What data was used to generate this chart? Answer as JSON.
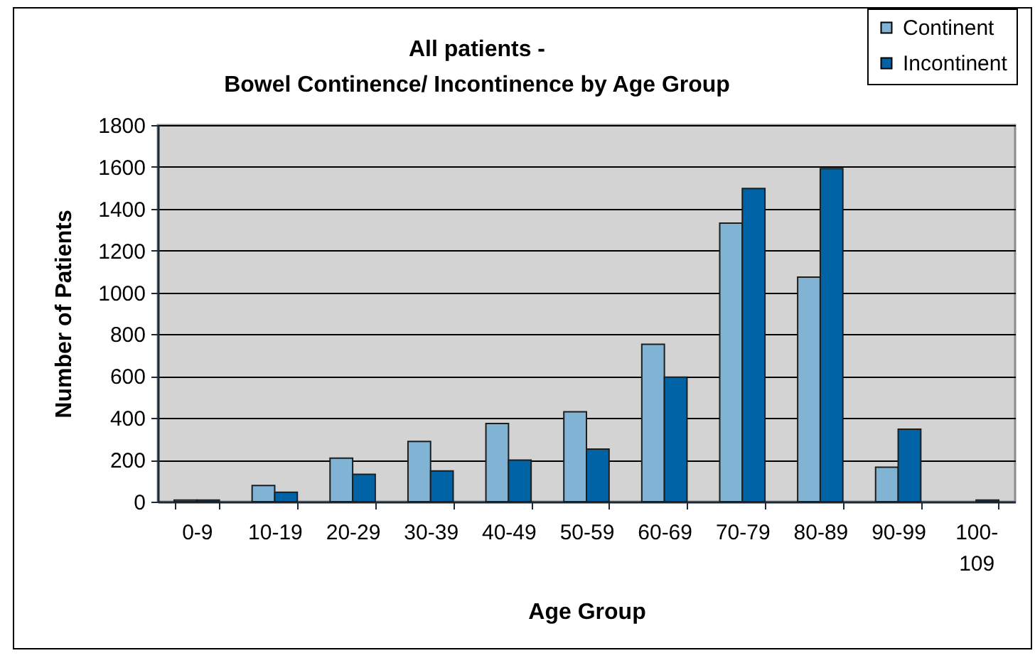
{
  "chart_data": {
    "type": "bar",
    "title": "All patients -",
    "subtitle": "Bowel Continence/ Incontinence by Age Group",
    "xlabel": "Age Group",
    "ylabel": "Number of Patients",
    "categories": [
      "0-9",
      "10-19",
      "20-29",
      "30-39",
      "40-49",
      "50-59",
      "60-69",
      "70-79",
      "80-89",
      "90-99",
      "100-109"
    ],
    "series": [
      {
        "name": "Continent",
        "color": "#80b3d4",
        "values": [
          8,
          77,
          208,
          288,
          374,
          430,
          752,
          1331,
          1073,
          165,
          0
        ]
      },
      {
        "name": "Incontinent",
        "color": "#0063a5",
        "values": [
          8,
          45,
          131,
          147,
          199,
          251,
          595,
          1497,
          1592,
          346,
          8
        ]
      }
    ],
    "ylim": [
      0,
      1800
    ],
    "yticks": [
      0,
      200,
      400,
      600,
      800,
      1000,
      1200,
      1400,
      1600,
      1800
    ],
    "grid": "y",
    "legend": "top right"
  }
}
